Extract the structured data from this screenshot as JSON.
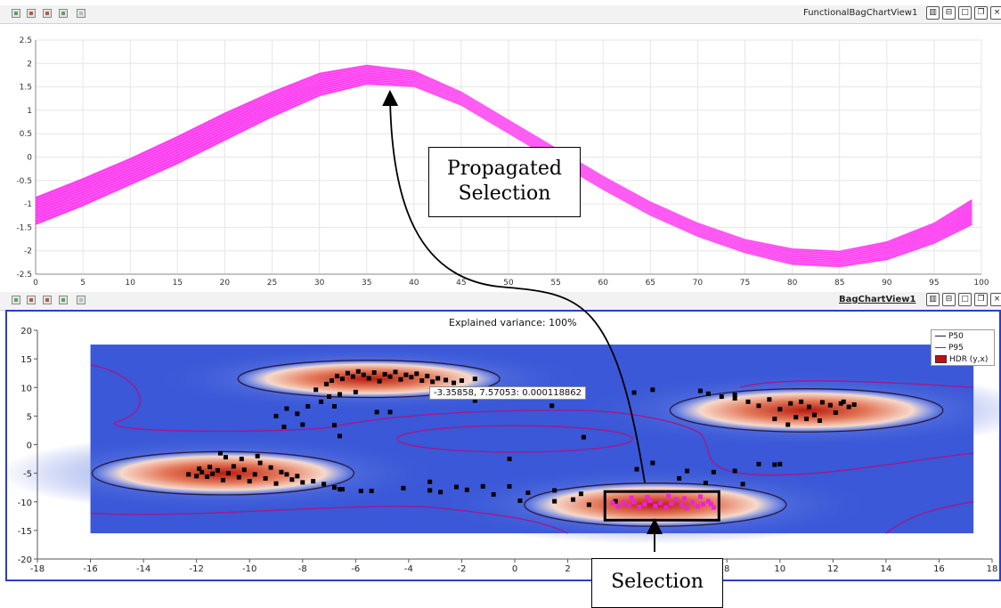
{
  "top_view": {
    "title": "FunctionalBagChartView1",
    "toolbar_icons": [
      "view-reset-icon",
      "zoom-icon",
      "select-icon",
      "select-points-icon",
      "clear-selection-icon"
    ],
    "window_buttons": [
      "split-horizontal-icon",
      "split-vertical-icon",
      "maximize-icon",
      "restore-icon",
      "close-icon"
    ]
  },
  "bottom_view": {
    "title": "BagChartView1",
    "toolbar_icons": [
      "view-reset-icon",
      "zoom-icon",
      "select-icon",
      "select-points-icon",
      "clear-selection-icon"
    ],
    "window_buttons": [
      "split-horizontal-icon",
      "split-vertical-icon",
      "maximize-icon",
      "restore-icon",
      "close-icon"
    ],
    "header_text": "Explained variance: 100%",
    "tooltip": "-3.35858, 7.57053: 0.000118862",
    "legend": [
      {
        "label": "P50",
        "color": "#2b1a3a",
        "kind": "line"
      },
      {
        "label": "P95",
        "color": "#a01a8a",
        "kind": "line"
      },
      {
        "label": "HDR (y,x)",
        "color": "#c01010",
        "kind": "box"
      }
    ]
  },
  "annotations": {
    "propagated_line1": "Propagated",
    "propagated_line2": "Selection",
    "selection": "Selection"
  },
  "colors": {
    "curve": "#ff20ee",
    "selected_point": "#ee22dd",
    "point": "#000000",
    "bag_low": "#3a58d8",
    "bag_high": "#b81a10",
    "active_border": "#2a3ec8"
  },
  "chart_data": [
    {
      "type": "line",
      "x_range": [
        0,
        100
      ],
      "y_range": [
        -2.5,
        2.5
      ],
      "x_ticks": [
        0,
        5,
        10,
        15,
        20,
        25,
        30,
        35,
        40,
        45,
        50,
        55,
        60,
        65,
        70,
        75,
        80,
        85,
        90,
        95,
        100
      ],
      "y_ticks": [
        -2.5,
        -2,
        -1.5,
        -1,
        -0.5,
        0,
        0.5,
        1,
        1.5,
        2,
        2.5
      ],
      "x_tick_labels": [
        "0",
        "5",
        "10",
        "15",
        "20",
        "25",
        "30",
        "35",
        "40",
        "45",
        "50",
        "55",
        "60",
        "65",
        "70",
        "75",
        "80",
        "85",
        "90",
        "95",
        "100"
      ],
      "y_tick_labels": [
        "-2.5",
        "-2",
        "-1.5",
        "-1",
        "-0.5",
        "0",
        "0.5",
        "1",
        "1.5",
        "2",
        "2.5"
      ],
      "grid": true,
      "band": {
        "x": [
          0,
          5,
          10,
          15,
          20,
          25,
          30,
          35,
          40,
          45,
          50,
          55,
          60,
          65,
          70,
          75,
          80,
          85,
          90,
          95,
          99
        ],
        "upper": [
          -0.85,
          -0.45,
          -0.02,
          0.45,
          0.95,
          1.4,
          1.8,
          1.97,
          1.85,
          1.4,
          0.8,
          0.2,
          -0.4,
          -0.95,
          -1.4,
          -1.75,
          -1.95,
          -2.0,
          -1.8,
          -1.4,
          -0.9
        ],
        "lower": [
          -1.45,
          -1.05,
          -0.6,
          -0.15,
          0.35,
          0.85,
          1.3,
          1.55,
          1.5,
          1.1,
          0.5,
          -0.1,
          -0.7,
          -1.25,
          -1.7,
          -2.05,
          -2.3,
          -2.35,
          -2.2,
          -1.85,
          -1.45
        ],
        "curve_count": 12
      }
    },
    {
      "type": "scatter",
      "x_range": [
        -18,
        18
      ],
      "y_range": [
        -20,
        20
      ],
      "x_ticks": [
        -18,
        -16,
        -14,
        -12,
        -10,
        -8,
        -6,
        -4,
        -2,
        0,
        2,
        4,
        6,
        8,
        10,
        12,
        14,
        16,
        18
      ],
      "y_ticks": [
        -20,
        -15,
        -10,
        -5,
        0,
        5,
        10,
        15,
        20
      ],
      "x_tick_labels": [
        "-18",
        "-16",
        "-14",
        "-12",
        "-10",
        "-8",
        "-6",
        "-4",
        "-2",
        "0",
        "2",
        "4",
        "6",
        "8",
        "10",
        "12",
        "14",
        "16",
        "18"
      ],
      "y_tick_labels": [
        "-20",
        "-15",
        "-10",
        "-5",
        "0",
        "5",
        "10",
        "15",
        "20"
      ],
      "grid": false,
      "heatmap_extent": {
        "x": [
          -16,
          17.3
        ],
        "y": [
          -15.5,
          17.5
        ]
      },
      "clusters": [
        {
          "cx": -11,
          "cy": -5,
          "rx": 4.7,
          "ry": 3.6,
          "p50": true
        },
        {
          "cx": -5.5,
          "cy": 11.5,
          "rx": 4.7,
          "ry": 3.1,
          "p50": true
        },
        {
          "cx": 11,
          "cy": 6,
          "rx": 4.9,
          "ry": 3.6,
          "p50": true
        },
        {
          "cx": 5.3,
          "cy": -10.5,
          "rx": 4.7,
          "ry": 3.6,
          "p50": true
        }
      ],
      "p95_inner": {
        "cx": 0,
        "cy": 1,
        "rx": 3.7,
        "ry": 2.1
      },
      "points": [
        [
          -12.3,
          -5.2
        ],
        [
          -12,
          -5.5
        ],
        [
          -11.8,
          -4.8
        ],
        [
          -11.6,
          -5.6
        ],
        [
          -11.4,
          -5.1
        ],
        [
          -11.2,
          -4.5
        ],
        [
          -11,
          -6.2
        ],
        [
          -10.8,
          -5
        ],
        [
          -10.6,
          -3.8
        ],
        [
          -10.4,
          -5.7
        ],
        [
          -10.2,
          -4.4
        ],
        [
          -10,
          -6.4
        ],
        [
          -9.8,
          -5.2
        ],
        [
          -9.6,
          -3.2
        ],
        [
          -9.4,
          -5.9
        ],
        [
          -9.2,
          -4
        ],
        [
          -9,
          -6.8
        ],
        [
          -8.8,
          -4.8
        ],
        [
          -8.6,
          -5.2
        ],
        [
          -8.4,
          -6.1
        ],
        [
          -8.2,
          -5.5
        ],
        [
          -8,
          -6.6
        ],
        [
          -7.6,
          -6.4
        ],
        [
          -11.9,
          -4.2
        ],
        [
          -11.5,
          -3.9
        ],
        [
          -10.9,
          -2.2
        ],
        [
          -10.3,
          -2.5
        ],
        [
          -9.7,
          -2
        ],
        [
          -11.1,
          -1.5
        ],
        [
          -7.2,
          -6.9
        ],
        [
          -6.8,
          -7.5
        ],
        [
          -6.5,
          -7.8
        ],
        [
          -7.1,
          10.6
        ],
        [
          -6.9,
          11.2
        ],
        [
          -6.7,
          12
        ],
        [
          -6.5,
          11.5
        ],
        [
          -6.3,
          12.5
        ],
        [
          -6.1,
          11.9
        ],
        [
          -5.9,
          12.8
        ],
        [
          -5.7,
          12.2
        ],
        [
          -5.5,
          11.6
        ],
        [
          -5.3,
          12.6
        ],
        [
          -5.1,
          11.1
        ],
        [
          -4.9,
          12.3
        ],
        [
          -4.7,
          11.9
        ],
        [
          -4.5,
          12.7
        ],
        [
          -4.3,
          11.4
        ],
        [
          -4.1,
          12.2
        ],
        [
          -3.9,
          11.8
        ],
        [
          -3.7,
          12.4
        ],
        [
          -3.5,
          11.2
        ],
        [
          -3.3,
          12
        ],
        [
          -3.1,
          11
        ],
        [
          -2.9,
          11.6
        ],
        [
          -2.6,
          11.3
        ],
        [
          -2.3,
          10.8
        ],
        [
          -2,
          11.2
        ],
        [
          -1.5,
          11.5
        ],
        [
          -6,
          9.2
        ],
        [
          -7,
          8.4
        ],
        [
          -7.5,
          9.6
        ],
        [
          7.3,
          8.9
        ],
        [
          7.8,
          8.4
        ],
        [
          8.3,
          8.1
        ],
        [
          8.8,
          7.5
        ],
        [
          9.2,
          6.8
        ],
        [
          9.6,
          7.9
        ],
        [
          10,
          6.2
        ],
        [
          10.4,
          7.2
        ],
        [
          10.8,
          7.5
        ],
        [
          11.1,
          6.6
        ],
        [
          11.3,
          5.2
        ],
        [
          11.6,
          7.4
        ],
        [
          11.9,
          6.9
        ],
        [
          12.1,
          5.6
        ],
        [
          12.3,
          7.2
        ],
        [
          12.6,
          6.6
        ],
        [
          12.8,
          7
        ],
        [
          11,
          4.5
        ],
        [
          11.5,
          4.2
        ],
        [
          10.6,
          4.8
        ],
        [
          12.4,
          7.5
        ],
        [
          9.8,
          4.5
        ],
        [
          10.3,
          3.5
        ],
        [
          -9,
          5
        ],
        [
          -8.6,
          6.3
        ],
        [
          -8.2,
          5.4
        ],
        [
          -7.8,
          6.7
        ],
        [
          -7.3,
          7.5
        ],
        [
          -6.6,
          8.8
        ],
        [
          -6.8,
          3.4
        ],
        [
          -6.6,
          1.5
        ],
        [
          -8.7,
          3.1
        ],
        [
          -8,
          3.5
        ],
        [
          -6.8,
          6.7
        ],
        [
          -5.2,
          5.7
        ],
        [
          -4.7,
          5.7
        ],
        [
          -3,
          8.5
        ],
        [
          -1.7,
          9.3
        ],
        [
          -1.5,
          7.7
        ],
        [
          1.4,
          6.8
        ],
        [
          4.5,
          9.1
        ],
        [
          5.2,
          9.6
        ],
        [
          7,
          9.4
        ],
        [
          8.3,
          8.7
        ],
        [
          2.6,
          1.3
        ],
        [
          -6.6,
          -7.8
        ],
        [
          -5.8,
          -8.1
        ],
        [
          -5.4,
          -8.1
        ],
        [
          -4.2,
          -7.6
        ],
        [
          -3.2,
          -6.5
        ],
        [
          -3.2,
          -8
        ],
        [
          -2.8,
          -8.3
        ],
        [
          -2.2,
          -7.4
        ],
        [
          -1.8,
          -7.9
        ],
        [
          -1.2,
          -7.3
        ],
        [
          -0.8,
          -8.7
        ],
        [
          -0.2,
          -2.5
        ],
        [
          -0.2,
          -7.3
        ],
        [
          0.5,
          -8.4
        ],
        [
          1.5,
          -8
        ],
        [
          2.5,
          -8.6
        ],
        [
          3.8,
          -9.9
        ],
        [
          4.6,
          -4.3
        ],
        [
          5.2,
          -3.2
        ],
        [
          6.2,
          -5.9
        ],
        [
          6.5,
          -4.6
        ],
        [
          7.2,
          -6.7
        ],
        [
          7.5,
          -4.8
        ],
        [
          8.3,
          -4.6
        ],
        [
          8.6,
          -6.9
        ],
        [
          9.2,
          -3.4
        ],
        [
          9.8,
          -3.5
        ],
        [
          10,
          -3.4
        ],
        [
          0.2,
          -9.8
        ],
        [
          1.5,
          -9.9
        ],
        [
          2.2,
          -9.6
        ],
        [
          2.8,
          -10.5
        ]
      ],
      "selected_points": [
        [
          3.7,
          -10.2
        ],
        [
          3.9,
          -10.8
        ],
        [
          4.1,
          -10.1
        ],
        [
          4.3,
          -10.6
        ],
        [
          4.5,
          -10
        ],
        [
          4.7,
          -10.9
        ],
        [
          4.9,
          -10.4
        ],
        [
          5.1,
          -9.8
        ],
        [
          5.3,
          -10.7
        ],
        [
          5.5,
          -10.2
        ],
        [
          5.7,
          -11
        ],
        [
          5.9,
          -10.3
        ],
        [
          6.1,
          -9.6
        ],
        [
          6.3,
          -10.5
        ],
        [
          6.5,
          -11.1
        ],
        [
          6.7,
          -10.1
        ],
        [
          6.9,
          -10.8
        ],
        [
          7.1,
          -10.4
        ],
        [
          7.3,
          -9.9
        ],
        [
          7.5,
          -11
        ],
        [
          4.4,
          -9.3
        ],
        [
          5,
          -9.2
        ],
        [
          5.8,
          -9
        ],
        [
          6.4,
          -9.4
        ],
        [
          7,
          -9.1
        ],
        [
          7.4,
          -10.4
        ]
      ],
      "selection_rect": {
        "x": [
          3.4,
          7.7
        ],
        "y": [
          -8.2,
          -13.2
        ]
      }
    }
  ]
}
